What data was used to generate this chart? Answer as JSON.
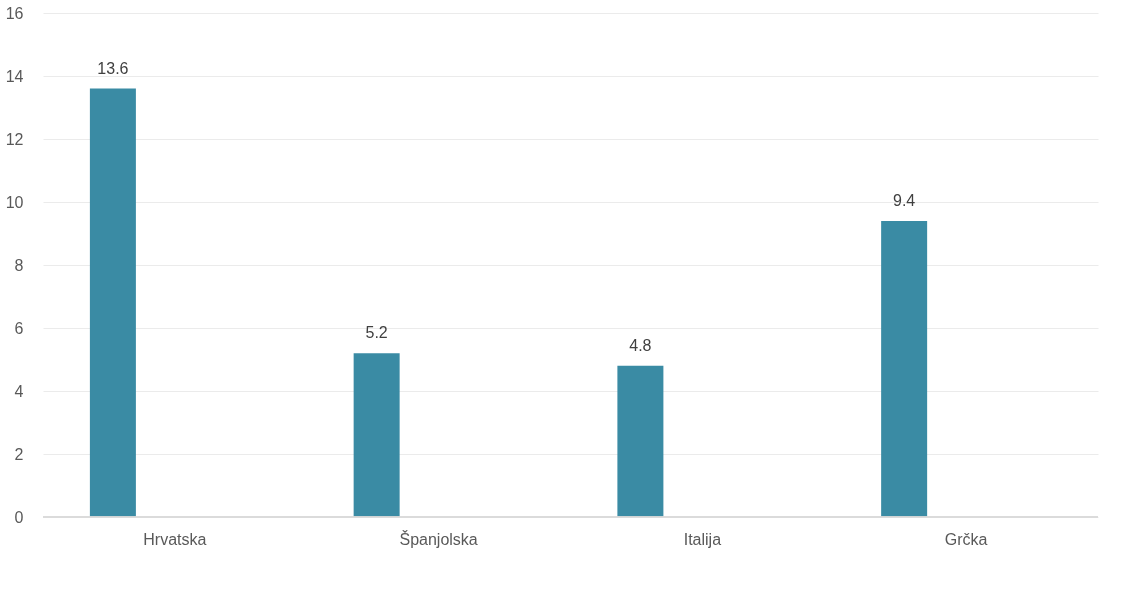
{
  "chart_data": {
    "type": "bar",
    "categories": [
      "Hrvatska",
      "Španjolska",
      "Italija",
      "Grčka"
    ],
    "values": [
      13.6,
      5.2,
      4.8,
      9.4
    ],
    "color": "#3a8ba4",
    "ylim": [
      0,
      16
    ],
    "yticks": [
      0,
      2,
      4,
      6,
      8,
      10,
      12,
      14,
      16
    ],
    "grid": "y",
    "data_labels": true
  }
}
